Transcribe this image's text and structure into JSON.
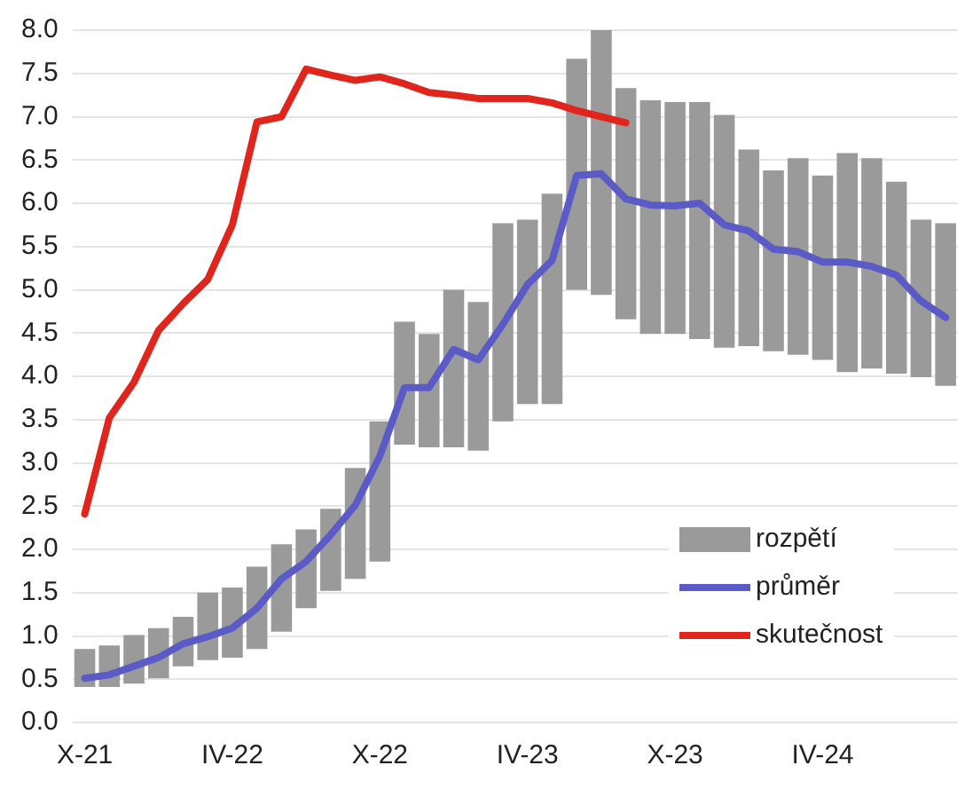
{
  "chart_data": {
    "type": "line",
    "categories": [
      "X-21",
      null,
      null,
      null,
      null,
      null,
      "IV-22",
      null,
      null,
      null,
      null,
      null,
      "X-22",
      null,
      null,
      null,
      null,
      null,
      "IV-23",
      null,
      null,
      null,
      null,
      null,
      "X-23",
      null,
      null,
      null,
      null,
      null,
      "IV-24",
      null,
      null,
      null,
      null,
      null
    ],
    "series": [
      {
        "name": "rozpětí",
        "type": "bar",
        "color": "#9a9a9a",
        "base": [
          0.41,
          0.41,
          0.45,
          0.51,
          0.65,
          0.72,
          0.75,
          0.85,
          1.05,
          1.32,
          1.52,
          1.66,
          1.86,
          3.21,
          3.18,
          3.18,
          3.14,
          3.48,
          3.68,
          3.68,
          5.0,
          4.94,
          4.66,
          4.49,
          4.49,
          4.43,
          4.33,
          4.35,
          4.29,
          4.25,
          4.19,
          4.05,
          4.09,
          4.03,
          3.99,
          3.89
        ],
        "values": [
          0.44,
          0.48,
          0.56,
          0.58,
          0.57,
          0.78,
          0.81,
          0.95,
          1.01,
          0.91,
          0.95,
          1.28,
          1.62,
          1.42,
          1.31,
          1.82,
          1.72,
          2.29,
          2.13,
          2.43,
          2.67,
          3.06,
          2.67,
          2.7,
          2.68,
          2.74,
          2.69,
          2.27,
          2.09,
          2.27,
          2.13,
          2.53,
          2.43,
          2.22,
          1.82,
          1.88
        ]
      },
      {
        "name": "průměr",
        "color": "#5b5bc8",
        "values": [
          0.51,
          0.55,
          0.65,
          0.75,
          0.91,
          0.99,
          1.09,
          1.32,
          1.66,
          1.86,
          2.17,
          2.51,
          3.08,
          3.87,
          3.87,
          4.31,
          4.19,
          4.6,
          5.06,
          5.34,
          6.32,
          6.34,
          6.05,
          5.98,
          5.97,
          6.0,
          5.75,
          5.68,
          5.47,
          5.44,
          5.32,
          5.32,
          5.27,
          5.17,
          4.87,
          4.68
        ]
      },
      {
        "name": "skutečnost",
        "color": "#e0261c",
        "values": [
          2.41,
          3.52,
          3.93,
          4.53,
          4.84,
          5.12,
          5.75,
          6.94,
          7.0,
          7.55,
          7.48,
          7.42,
          7.46,
          7.38,
          7.28,
          7.25,
          7.21,
          7.21,
          7.21,
          7.16,
          7.07,
          7.0,
          6.93,
          null,
          null,
          null,
          null,
          null,
          null,
          null,
          null,
          null,
          null,
          null,
          null,
          null
        ]
      }
    ],
    "ylim": [
      0,
      8
    ],
    "yticks": [
      {
        "value": 0,
        "label": "0.0"
      },
      {
        "value": 0.5,
        "label": "0.5"
      },
      {
        "value": 1,
        "label": "1.0"
      },
      {
        "value": 1.5,
        "label": "1.5"
      },
      {
        "value": 2,
        "label": "2.0"
      },
      {
        "value": 2.5,
        "label": "2.5"
      },
      {
        "value": 3,
        "label": "3.0"
      },
      {
        "value": 3.5,
        "label": "3.5"
      },
      {
        "value": 4,
        "label": "4.0"
      },
      {
        "value": 4.5,
        "label": "4.5"
      },
      {
        "value": 5,
        "label": "5.0"
      },
      {
        "value": 5.5,
        "label": "5.5"
      },
      {
        "value": 6,
        "label": "6.0"
      },
      {
        "value": 6.5,
        "label": "6.5"
      },
      {
        "value": 7,
        "label": "7.0"
      },
      {
        "value": 7.5,
        "label": "7.5"
      },
      {
        "value": 8,
        "label": "8.0"
      }
    ],
    "grid": "y",
    "legend": "bottom right",
    "marker": "none",
    "line_style": "solid"
  }
}
